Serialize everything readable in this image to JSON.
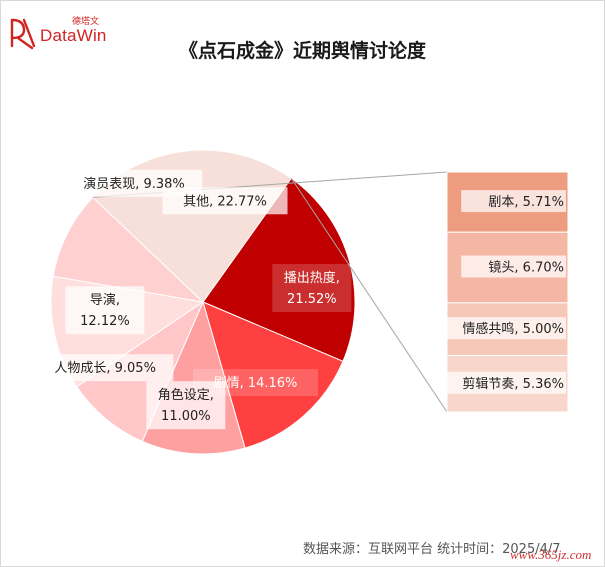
{
  "brand": {
    "name_cn": "德塔文",
    "name_en": "DataWin",
    "color": "#d22323"
  },
  "title": "《点石成金》近期舆情讨论度",
  "footer": {
    "source": "数据来源：互联网平台  统计时间：2025/4/7",
    "watermark": "www.365jz.com"
  },
  "chart_data": {
    "type": "pie",
    "title": "《点石成金》近期舆情讨论度",
    "slices": [
      {
        "label": "播出热度",
        "value": 21.52,
        "display": "21.52%",
        "color": "#c00000",
        "text_color": "#ffffff"
      },
      {
        "label": "剧情",
        "value": 14.16,
        "display": "14.16%",
        "color": "#ff4040",
        "text_color": "#ffffff"
      },
      {
        "label": "角色设定",
        "value": 11.0,
        "display": "11.00%",
        "color": "#ffa0a0",
        "text_color": "#222222"
      },
      {
        "label": "人物成长",
        "value": 9.05,
        "display": "9.05%",
        "color": "#ffc7c7",
        "text_color": "#222222"
      },
      {
        "label": "导演",
        "value": 12.12,
        "display": "12.12%",
        "color": "#ffdede",
        "text_color": "#222222"
      },
      {
        "label": "演员表现",
        "value": 9.38,
        "display": "9.38%",
        "color": "#ffd0d0",
        "text_color": "#222222"
      },
      {
        "label": "其他",
        "value": 22.77,
        "display": "22.77%",
        "color": "#f8e0da",
        "text_color": "#222222"
      }
    ],
    "breakdown_of": "其他",
    "breakdown": [
      {
        "label": "剧本",
        "value": 5.71,
        "display": "5.71%",
        "color": "#ee9c80"
      },
      {
        "label": "镜头",
        "value": 6.7,
        "display": "6.70%",
        "color": "#f3b7a4"
      },
      {
        "label": "情感共鸣",
        "value": 5.0,
        "display": "5.00%",
        "color": "#f6c8b8"
      },
      {
        "label": "剪辑节奏",
        "value": 5.36,
        "display": "5.36%",
        "color": "#f8d6ca"
      }
    ]
  }
}
